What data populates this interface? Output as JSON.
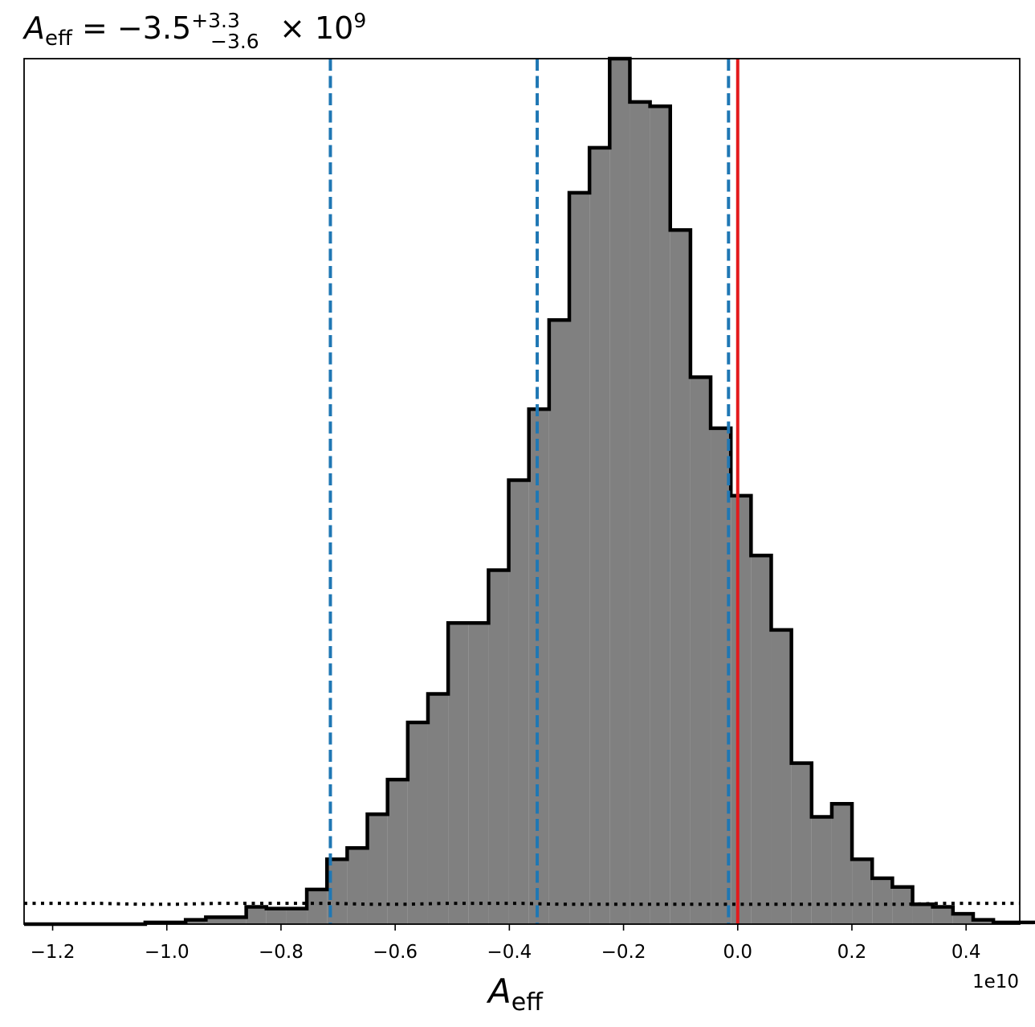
{
  "chart_data": {
    "type": "histogram",
    "title": {
      "symbol": "A",
      "symbol_subscript": "eff",
      "equals": " = ",
      "value": "−3.5",
      "upper_error": "+3.3",
      "lower_error": "−3.6",
      "multiplier": " × 10",
      "exponent": "9"
    },
    "xlabel": {
      "symbol": "A",
      "subscript": "eff"
    },
    "offset_label": "1e10",
    "xlim": [
      -1.25,
      0.494
    ],
    "ylim": [
      0,
      1.0
    ],
    "x_ticks": [
      -1.2,
      -1.0,
      -0.8,
      -0.6,
      -0.4,
      -0.2,
      0.0,
      0.2,
      0.4
    ],
    "x_tick_labels": [
      "−1.2",
      "−1.0",
      "−0.8",
      "−0.6",
      "−0.4",
      "−0.2",
      "0.0",
      "0.2",
      "0.4"
    ],
    "y_ticks_visible": false,
    "histogram": {
      "bin_start": -1.25,
      "bin_width": 0.03537,
      "counts": [
        0.0,
        0.0,
        0.0,
        0.0,
        0.0,
        0.0,
        0.002,
        0.002,
        0.005,
        0.008,
        0.008,
        0.02,
        0.018,
        0.018,
        0.04,
        0.075,
        0.088,
        0.127,
        0.167,
        0.233,
        0.266,
        0.348,
        0.348,
        0.409,
        0.513,
        0.595,
        0.698,
        0.845,
        0.897,
        1.0,
        0.95,
        0.945,
        0.802,
        0.632,
        0.573,
        0.495,
        0.426,
        0.34,
        0.186,
        0.124,
        0.139,
        0.075,
        0.053,
        0.043,
        0.023,
        0.02,
        0.012,
        0.005,
        0.002,
        0.002
      ],
      "fill_color": "#808080",
      "edge_color": "#000000"
    },
    "quantile_lines": {
      "values": [
        -0.7135,
        -0.3512,
        -0.0161
      ],
      "color": "#1f77b4",
      "style": "dashed"
    },
    "truth_line": {
      "value": 0.0,
      "color": "#e31a1c",
      "style": "solid"
    },
    "prior_line": {
      "values": [
        0.024,
        0.024,
        0.024,
        0.023,
        0.023,
        0.024,
        0.024,
        0.024,
        0.024,
        0.023,
        0.023,
        0.024,
        0.024,
        0.024,
        0.023,
        0.023,
        0.023,
        0.023,
        0.023,
        0.023,
        0.023,
        0.023,
        0.023,
        0.023,
        0.024,
        0.024,
        0.024
      ],
      "color": "#000000",
      "style": "dotted"
    }
  }
}
